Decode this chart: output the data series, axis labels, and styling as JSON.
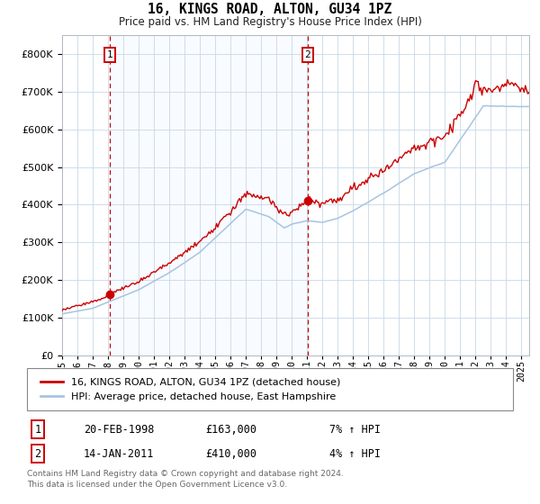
{
  "title": "16, KINGS ROAD, ALTON, GU34 1PZ",
  "subtitle": "Price paid vs. HM Land Registry's House Price Index (HPI)",
  "sale1_date": "20-FEB-1998",
  "sale1_price": "£163,000",
  "sale1_pct": "7% ↑ HPI",
  "sale2_date": "14-JAN-2011",
  "sale2_price": "£410,000",
  "sale2_pct": "4% ↑ HPI",
  "legend_line1": "16, KINGS ROAD, ALTON, GU34 1PZ (detached house)",
  "legend_line2": "HPI: Average price, detached house, East Hampshire",
  "footer1": "Contains HM Land Registry data © Crown copyright and database right 2024.",
  "footer2": "This data is licensed under the Open Government Licence v3.0.",
  "hpi_color": "#a8c4e0",
  "price_color": "#cc0000",
  "vline_color": "#cc0000",
  "dot_color": "#cc0000",
  "bg_band_color": "#ddeeff",
  "ylim": [
    0,
    850000
  ],
  "xlim_start": 1995.0,
  "xlim_end": 2025.5,
  "ylabel_ticks": [
    0,
    100000,
    200000,
    300000,
    400000,
    500000,
    600000,
    700000,
    800000
  ],
  "xticks": [
    1995,
    1996,
    1997,
    1998,
    1999,
    2000,
    2001,
    2002,
    2003,
    2004,
    2005,
    2006,
    2007,
    2008,
    2009,
    2010,
    2011,
    2012,
    2013,
    2014,
    2015,
    2016,
    2017,
    2018,
    2019,
    2020,
    2021,
    2022,
    2023,
    2024,
    2025
  ],
  "sale1_x": 1998.13,
  "sale1_y": 163000,
  "sale2_x": 2011.04,
  "sale2_y": 410000
}
